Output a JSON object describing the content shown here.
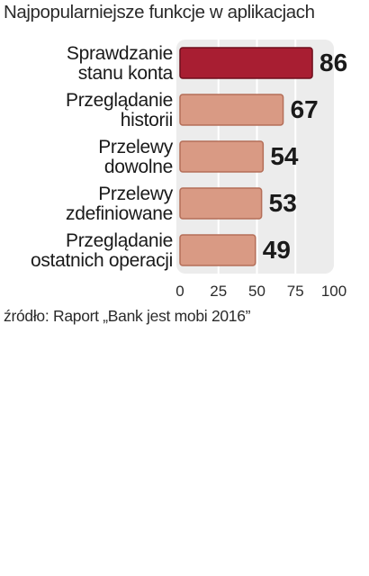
{
  "chart_data": {
    "type": "bar",
    "orientation": "horizontal",
    "title": "Najpopularniejsze funkcje w aplikacjach",
    "categories": [
      [
        "Sprawdzanie",
        "stanu konta"
      ],
      [
        "Przeglądanie",
        "historii"
      ],
      [
        "Przelewy",
        "dowolne"
      ],
      [
        "Przelewy",
        "zdefiniowane"
      ],
      [
        "Przeglądanie",
        "ostatnich operacji"
      ]
    ],
    "values": [
      86,
      67,
      54,
      53,
      49
    ],
    "xlim": [
      0,
      100
    ],
    "xticks": [
      "0",
      "25",
      "50",
      "75",
      "100"
    ],
    "grid": true,
    "colors": {
      "highlight": "#a81e32",
      "highlight_border": "#6e0f1d",
      "bar": "#d99a84",
      "bar_border": "#b46e58",
      "panel": "#ececec",
      "grid": "#ffffff"
    }
  },
  "source_text": "źródło: Raport „Bank jest mobi 2016”"
}
